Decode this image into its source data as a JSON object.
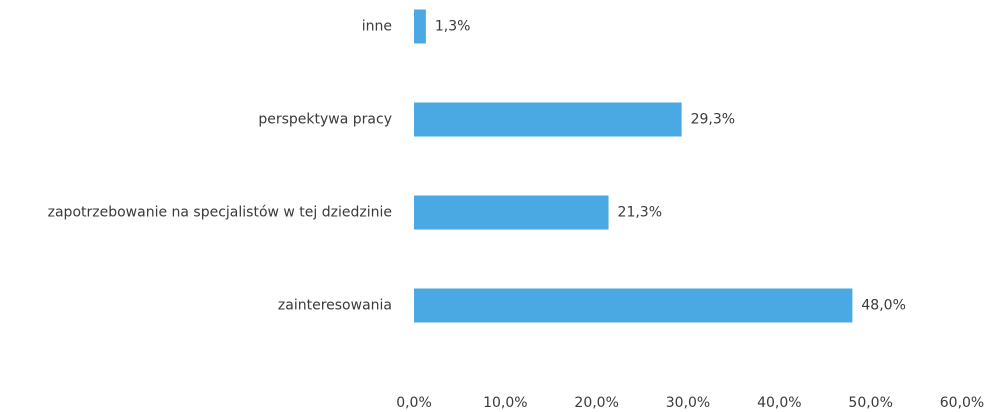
{
  "chart_data": {
    "type": "bar",
    "orientation": "horizontal",
    "categories": [
      "inne",
      "perspektywa pracy",
      "zapotrzebowanie na specjalistów w tej dziedzinie",
      "zainteresowania"
    ],
    "values": [
      1.3,
      29.3,
      21.3,
      48.0
    ],
    "value_labels": [
      "1,3%",
      "29,3%",
      "21,3%",
      "48,0%"
    ],
    "color": "#4aa8e2",
    "xlim": [
      0,
      60
    ],
    "xticks": [
      {
        "value": 0,
        "label": "0,0%"
      },
      {
        "value": 10,
        "label": "10,0%"
      },
      {
        "value": 20,
        "label": "20,0%"
      },
      {
        "value": 30,
        "label": "30,0%"
      },
      {
        "value": 40,
        "label": "40,0%"
      },
      {
        "value": 50,
        "label": "50,0%"
      },
      {
        "value": 60,
        "label": "60,0%"
      }
    ],
    "grid": false
  }
}
